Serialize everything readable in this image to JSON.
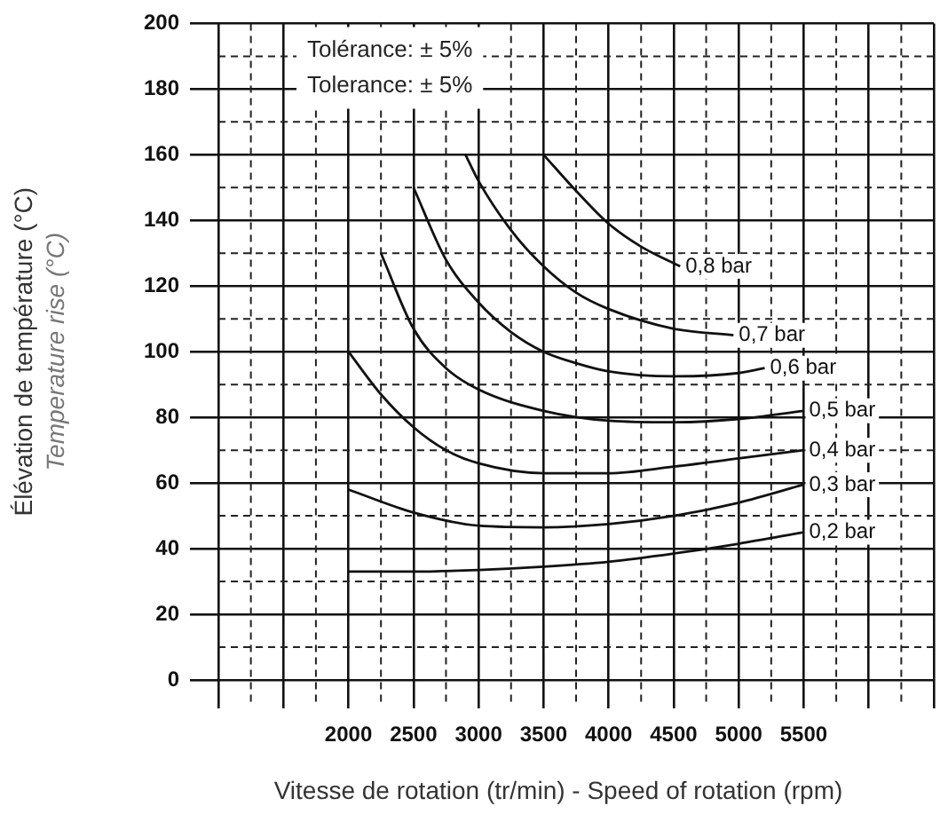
{
  "chart_data": {
    "type": "line",
    "xlabel": "Vitesse de rotation (tr/min) - Speed of rotation (rpm)",
    "ylabel": "Élévation de température (°C)\nTemperature rise (°C)",
    "annotations": [
      "Tolérance: ± 5%",
      "Tolerance: ± 5%"
    ],
    "xlim": [
      1000,
      6500
    ],
    "xticks": [
      {
        "value": 1000,
        "label": null
      },
      {
        "value": 1500,
        "label": null
      },
      2000,
      2500,
      3000,
      3500,
      4000,
      4500,
      5000,
      5500,
      {
        "value": 6000,
        "label": null
      },
      {
        "value": 6500,
        "label": null
      }
    ],
    "ylim": [
      0,
      200
    ],
    "yticks": [
      0,
      20,
      40,
      60,
      80,
      100,
      120,
      140,
      160,
      180,
      200
    ],
    "grid": true,
    "legend": false,
    "marker": "none",
    "line_style": "solid",
    "series": [
      {
        "name": "0,8 bar",
        "color": "#111111",
        "x": [
          3500,
          3750,
          4000,
          4250,
          4550
        ],
        "values": [
          160,
          149,
          139,
          132,
          126
        ]
      },
      {
        "name": "0,7 bar",
        "color": "#111111",
        "x": [
          2900,
          3000,
          3250,
          3500,
          3750,
          4000,
          4500,
          4960
        ],
        "values": [
          160,
          152,
          137,
          126,
          118,
          113,
          107,
          105
        ]
      },
      {
        "name": "0,6 bar",
        "color": "#111111",
        "x": [
          2500,
          2750,
          3000,
          3250,
          3500,
          3750,
          4000,
          4500,
          5000,
          5200
        ],
        "values": [
          150,
          128,
          115,
          106,
          100,
          96.5,
          94,
          92.5,
          93.5,
          95
        ]
      },
      {
        "name": "0,5 bar",
        "color": "#111111",
        "x": [
          2250,
          2500,
          2750,
          3000,
          3500,
          4000,
          4500,
          5000,
          5500
        ],
        "values": [
          130,
          107,
          95,
          88.5,
          82,
          79,
          78.5,
          79.5,
          82
        ]
      },
      {
        "name": "0,4 bar",
        "color": "#111111",
        "x": [
          2000,
          2250,
          2500,
          2750,
          3000,
          3500,
          4000,
          4500,
          5000,
          5500
        ],
        "values": [
          100,
          87,
          77,
          70,
          66,
          63,
          63,
          65,
          67.5,
          70
        ]
      },
      {
        "name": "0,3 bar",
        "color": "#111111",
        "x": [
          2000,
          2500,
          3000,
          3500,
          4000,
          4500,
          5000,
          5500
        ],
        "values": [
          58,
          51,
          47,
          46.5,
          47.5,
          50,
          54,
          59.5
        ]
      },
      {
        "name": "0,2 bar",
        "color": "#111111",
        "x": [
          2000,
          2500,
          3000,
          3500,
          4000,
          4500,
          5000,
          5500
        ],
        "values": [
          33,
          33,
          33.5,
          34.5,
          36,
          38.5,
          41.5,
          45
        ]
      }
    ]
  }
}
